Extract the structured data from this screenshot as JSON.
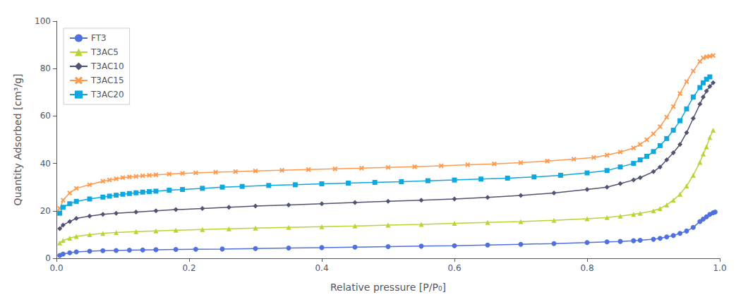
{
  "chart_data": {
    "type": "line",
    "xlabel": "Relative pressure [P/P₀]",
    "ylabel": "Quantity Adsorbed [cm³/g]",
    "xlim": [
      0,
      1.0
    ],
    "ylim": [
      0,
      100
    ],
    "xticks": [
      {
        "value": 0,
        "label": "0.0"
      },
      0.2,
      0.4,
      0.6,
      0.8,
      {
        "value": 1.0,
        "label": "1.0"
      }
    ],
    "yticks": [
      0,
      20,
      40,
      60,
      80,
      100
    ],
    "grid": false,
    "legend": "upper left",
    "series": [
      {
        "name": "FT3",
        "marker": "circle",
        "x": [
          0.005,
          0.01,
          0.02,
          0.03,
          0.05,
          0.07,
          0.09,
          0.11,
          0.13,
          0.15,
          0.18,
          0.21,
          0.25,
          0.3,
          0.35,
          0.4,
          0.45,
          0.5,
          0.55,
          0.6,
          0.65,
          0.7,
          0.75,
          0.8,
          0.83,
          0.85,
          0.87,
          0.88,
          0.9,
          0.91,
          0.92,
          0.93,
          0.94,
          0.95,
          0.96,
          0.97,
          0.975,
          0.98,
          0.985,
          0.99,
          0.993
        ],
        "values": [
          1.2,
          1.8,
          2.3,
          2.7,
          3.0,
          3.2,
          3.3,
          3.4,
          3.5,
          3.6,
          3.7,
          3.8,
          3.9,
          4.1,
          4.3,
          4.5,
          4.7,
          4.9,
          5.1,
          5.3,
          5.6,
          5.9,
          6.2,
          6.6,
          6.9,
          7.1,
          7.4,
          7.6,
          8.0,
          8.4,
          9.0,
          9.6,
          10.5,
          11.5,
          13.0,
          15.5,
          16.5,
          17.5,
          18.5,
          19.2,
          19.5
        ]
      },
      {
        "name": "T3AC5",
        "marker": "triangle",
        "x": [
          0.005,
          0.01,
          0.02,
          0.03,
          0.05,
          0.07,
          0.09,
          0.12,
          0.15,
          0.18,
          0.22,
          0.26,
          0.3,
          0.35,
          0.4,
          0.45,
          0.5,
          0.55,
          0.6,
          0.65,
          0.7,
          0.75,
          0.8,
          0.83,
          0.85,
          0.87,
          0.88,
          0.9,
          0.91,
          0.92,
          0.93,
          0.94,
          0.95,
          0.96,
          0.97,
          0.975,
          0.98,
          0.985,
          0.99
        ],
        "values": [
          6.5,
          7.5,
          8.5,
          9.2,
          10.0,
          10.5,
          10.9,
          11.2,
          11.5,
          11.8,
          12.1,
          12.4,
          12.7,
          13.0,
          13.3,
          13.6,
          14.0,
          14.3,
          14.7,
          15.1,
          15.5,
          16.0,
          16.7,
          17.2,
          17.8,
          18.5,
          19.0,
          20.0,
          21.0,
          22.5,
          24.5,
          27.0,
          30.5,
          35.0,
          40.5,
          44.0,
          47.0,
          51.0,
          54.0
        ]
      },
      {
        "name": "T3AC10",
        "marker": "diamond",
        "x": [
          0.005,
          0.01,
          0.02,
          0.03,
          0.05,
          0.07,
          0.09,
          0.12,
          0.15,
          0.18,
          0.22,
          0.26,
          0.3,
          0.35,
          0.4,
          0.45,
          0.5,
          0.55,
          0.6,
          0.65,
          0.7,
          0.75,
          0.8,
          0.83,
          0.85,
          0.87,
          0.88,
          0.9,
          0.91,
          0.92,
          0.93,
          0.94,
          0.95,
          0.96,
          0.97,
          0.975,
          0.98,
          0.985,
          0.99
        ],
        "values": [
          12.5,
          14.0,
          15.5,
          16.8,
          17.8,
          18.5,
          19.0,
          19.5,
          20.0,
          20.5,
          21.0,
          21.5,
          22.0,
          22.5,
          23.0,
          23.5,
          24.0,
          24.5,
          25.0,
          25.7,
          26.5,
          27.5,
          29.0,
          30.0,
          31.5,
          33.0,
          34.0,
          36.5,
          38.5,
          41.5,
          44.5,
          48.0,
          53.0,
          59.0,
          65.0,
          68.0,
          70.5,
          72.5,
          74.0
        ]
      },
      {
        "name": "T3AC15",
        "marker": "x",
        "x": [
          0.005,
          0.01,
          0.02,
          0.03,
          0.05,
          0.07,
          0.08,
          0.09,
          0.1,
          0.11,
          0.12,
          0.13,
          0.14,
          0.15,
          0.17,
          0.19,
          0.21,
          0.24,
          0.27,
          0.3,
          0.34,
          0.38,
          0.42,
          0.46,
          0.5,
          0.54,
          0.58,
          0.62,
          0.66,
          0.7,
          0.74,
          0.78,
          0.81,
          0.83,
          0.85,
          0.87,
          0.88,
          0.89,
          0.9,
          0.91,
          0.92,
          0.93,
          0.94,
          0.95,
          0.96,
          0.97,
          0.975,
          0.98,
          0.985,
          0.99
        ],
        "values": [
          21.0,
          24.5,
          27.5,
          29.5,
          31.0,
          32.5,
          33.0,
          33.5,
          34.0,
          34.3,
          34.5,
          34.8,
          35.0,
          35.2,
          35.5,
          35.8,
          36.0,
          36.3,
          36.5,
          36.8,
          37.1,
          37.4,
          37.7,
          38.0,
          38.3,
          38.6,
          39.0,
          39.4,
          39.8,
          40.3,
          41.0,
          41.8,
          42.5,
          43.5,
          44.8,
          46.5,
          48.0,
          50.0,
          52.5,
          55.5,
          59.5,
          64.0,
          69.5,
          74.5,
          79.0,
          83.0,
          84.5,
          85.0,
          85.2,
          85.5
        ]
      },
      {
        "name": "T3AC20",
        "marker": "square",
        "x": [
          0.005,
          0.01,
          0.02,
          0.03,
          0.05,
          0.07,
          0.08,
          0.09,
          0.1,
          0.11,
          0.12,
          0.13,
          0.14,
          0.15,
          0.17,
          0.19,
          0.22,
          0.25,
          0.28,
          0.32,
          0.36,
          0.4,
          0.44,
          0.48,
          0.52,
          0.56,
          0.6,
          0.64,
          0.68,
          0.72,
          0.76,
          0.8,
          0.83,
          0.85,
          0.87,
          0.88,
          0.89,
          0.9,
          0.91,
          0.92,
          0.93,
          0.94,
          0.95,
          0.96,
          0.97,
          0.975,
          0.98,
          0.985
        ],
        "values": [
          19.0,
          21.5,
          23.0,
          24.0,
          25.0,
          25.8,
          26.2,
          26.6,
          27.0,
          27.3,
          27.6,
          27.9,
          28.1,
          28.3,
          28.7,
          29.0,
          29.5,
          30.0,
          30.3,
          30.7,
          31.0,
          31.4,
          31.7,
          32.0,
          32.3,
          32.7,
          33.0,
          33.4,
          33.8,
          34.3,
          35.0,
          36.0,
          37.0,
          38.5,
          40.0,
          41.5,
          43.0,
          45.0,
          47.5,
          50.5,
          54.0,
          58.0,
          63.0,
          68.0,
          72.0,
          74.0,
          75.5,
          76.5
        ]
      }
    ]
  }
}
